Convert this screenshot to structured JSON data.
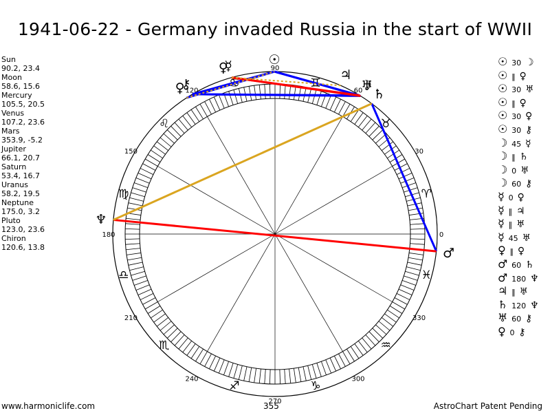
{
  "title": "1941-06-22 - Germany invaded Russia in the start of WWII",
  "planets": [
    {
      "name": "Sun",
      "coords": "90.2, 23.4"
    },
    {
      "name": "Moon",
      "coords": "58.6, 15.6"
    },
    {
      "name": "Mercury",
      "coords": "105.5, 20.5"
    },
    {
      "name": "Venus",
      "coords": "107.2, 23.6"
    },
    {
      "name": "Mars",
      "coords": "353.9, -5.2"
    },
    {
      "name": "Jupiter",
      "coords": "66.1, 20.7"
    },
    {
      "name": "Saturn",
      "coords": "53.4, 16.7"
    },
    {
      "name": "Uranus",
      "coords": "58.2, 19.5"
    },
    {
      "name": "Neptune",
      "coords": "175.0, 3.2"
    },
    {
      "name": "Pluto",
      "coords": "123.0, 23.6"
    },
    {
      "name": "Chiron",
      "coords": "120.6, 13.8"
    }
  ],
  "aspects": [
    {
      "p1": "☉",
      "type": "30",
      "p2": "☽"
    },
    {
      "p1": "☉",
      "type": "‖",
      "p2": "♀"
    },
    {
      "p1": "☉",
      "type": "30",
      "p2": "♅"
    },
    {
      "p1": "☉",
      "type": "‖",
      "p2": "♀"
    },
    {
      "p1": "☉",
      "type": "30",
      "p2": "♀"
    },
    {
      "p1": "☉",
      "type": "30",
      "p2": "⚷"
    },
    {
      "p1": "☽",
      "type": "45",
      "p2": "☿"
    },
    {
      "p1": "☽",
      "type": "‖",
      "p2": "♄"
    },
    {
      "p1": "☽",
      "type": "0",
      "p2": "♅"
    },
    {
      "p1": "☽",
      "type": "60",
      "p2": "⚷"
    },
    {
      "p1": "☿",
      "type": "0",
      "p2": "♀"
    },
    {
      "p1": "☿",
      "type": "‖",
      "p2": "♃"
    },
    {
      "p1": "☿",
      "type": "‖",
      "p2": "♅"
    },
    {
      "p1": "☿",
      "type": "45",
      "p2": "♅"
    },
    {
      "p1": "♀",
      "type": "‖",
      "p2": "♀"
    },
    {
      "p1": "♂",
      "type": "60",
      "p2": "♄"
    },
    {
      "p1": "♂",
      "type": "180",
      "p2": "♆"
    },
    {
      "p1": "♃",
      "type": "‖",
      "p2": "♅"
    },
    {
      "p1": "♄",
      "type": "120",
      "p2": "♆"
    },
    {
      "p1": "♅",
      "type": "60",
      "p2": "⚷"
    },
    {
      "p1": "♀",
      "type": "0",
      "p2": "⚷"
    }
  ],
  "footer": {
    "left": "www.harmoniclife.com",
    "middle": "355",
    "right": "AstroChart Patent Pending"
  },
  "chart_data": {
    "type": "other",
    "degree_labels": [
      "0",
      "30",
      "60",
      "90",
      "120",
      "150",
      "180",
      "210",
      "240",
      "270",
      "300",
      "330"
    ],
    "zodiac_signs": [
      {
        "glyph": "♈",
        "name": "aries-glyph"
      },
      {
        "glyph": "♉",
        "name": "taurus-glyph"
      },
      {
        "glyph": "♊",
        "name": "gemini-glyph"
      },
      {
        "glyph": "♋",
        "name": "cancer-glyph"
      },
      {
        "glyph": "♌",
        "name": "leo-glyph"
      },
      {
        "glyph": "♍",
        "name": "virgo-glyph"
      },
      {
        "glyph": "♎",
        "name": "libra-glyph"
      },
      {
        "glyph": "♏",
        "name": "scorpio-glyph"
      },
      {
        "glyph": "♐",
        "name": "sagittarius-glyph"
      },
      {
        "glyph": "♑",
        "name": "capricorn-glyph"
      },
      {
        "glyph": "♒",
        "name": "aquarius-glyph"
      },
      {
        "glyph": "♓",
        "name": "pisces-glyph"
      }
    ],
    "planet_positions": [
      {
        "glyph": "☉",
        "name": "sun",
        "lon": 90.2
      },
      {
        "glyph": "☽",
        "name": "moon",
        "lon": 58.6
      },
      {
        "glyph": "☿",
        "name": "mercury",
        "lon": 105.5
      },
      {
        "glyph": "♀",
        "name": "venus",
        "lon": 107.2
      },
      {
        "glyph": "♂",
        "name": "mars",
        "lon": 353.9
      },
      {
        "glyph": "♃",
        "name": "jupiter",
        "lon": 66.1
      },
      {
        "glyph": "♄",
        "name": "saturn",
        "lon": 53.4
      },
      {
        "glyph": "♅",
        "name": "uranus",
        "lon": 58.2
      },
      {
        "glyph": "♆",
        "name": "neptune",
        "lon": 175.0
      },
      {
        "glyph": "♀",
        "name": "pluto",
        "lon": 123.0
      },
      {
        "glyph": "⚷",
        "name": "chiron",
        "lon": 120.6
      }
    ],
    "aspect_lines": [
      {
        "from": "sun",
        "to": "moon",
        "color": "#0000ff"
      },
      {
        "from": "sun",
        "to": "uranus",
        "color": "#0000ff"
      },
      {
        "from": "sun",
        "to": "pluto",
        "color": "#0000ff"
      },
      {
        "from": "sun",
        "to": "chiron",
        "color": "#0000ff"
      },
      {
        "from": "moon",
        "to": "chiron",
        "color": "#0000ff"
      },
      {
        "from": "uranus",
        "to": "chiron",
        "color": "#0000ff"
      },
      {
        "from": "mars",
        "to": "saturn",
        "color": "#0000ff"
      },
      {
        "from": "moon",
        "to": "mercury",
        "color": "#ff0000"
      },
      {
        "from": "mercury",
        "to": "uranus",
        "color": "#ff0000"
      },
      {
        "from": "mars",
        "to": "neptune",
        "color": "#ff0000"
      },
      {
        "from": "saturn",
        "to": "neptune",
        "color": "#daa520"
      },
      {
        "from": "mercury",
        "to": "jupiter",
        "color": "#daa520",
        "dashed": true
      },
      {
        "from": "pluto",
        "to": "sun",
        "color": "#daa520",
        "dashed": true
      }
    ]
  }
}
